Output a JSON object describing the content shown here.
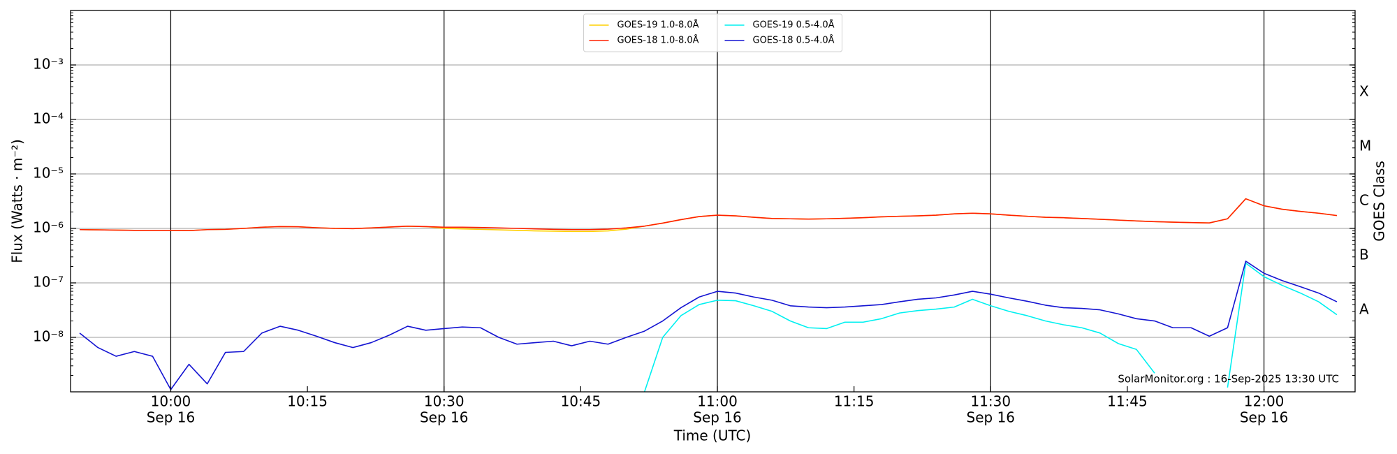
{
  "chart_data": {
    "type": "line",
    "xlabel": "Time (UTC)",
    "ylabel": "Flux (Watts · m⁻²)",
    "y2label": "GOES Class",
    "annotation": "SolarMonitor.org : 16-Sep-2025 13:30 UTC",
    "log_y": true,
    "grid": true,
    "legend": "upper center",
    "xlim": [
      "09:49",
      "12:10"
    ],
    "xticks": [
      "10:00",
      "10:15",
      "10:30",
      "10:45",
      "11:00",
      "11:15",
      "11:30",
      "11:45",
      "12:00"
    ],
    "xtick_sublabels": [
      "Sep 16",
      null,
      "Sep 16",
      null,
      "Sep 16",
      null,
      "Sep 16",
      null,
      "Sep 16"
    ],
    "ylim": [
      1e-09,
      0.01
    ],
    "yticks": [
      {
        "value": 1e-08,
        "label": "10⁻⁸"
      },
      {
        "value": 1e-07,
        "label": "10⁻⁷"
      },
      {
        "value": 1e-06,
        "label": "10⁻⁶"
      },
      {
        "value": 1e-05,
        "label": "10⁻⁵"
      },
      {
        "value": 0.0001,
        "label": "10⁻⁴"
      },
      {
        "value": 0.001,
        "label": "10⁻³"
      }
    ],
    "y2lim": [
      1e-09,
      0.01
    ],
    "y2ticks": [
      {
        "value": 3.16e-08,
        "label": "A"
      },
      {
        "value": 3.16e-07,
        "label": "B"
      },
      {
        "value": 3.16e-06,
        "label": "C"
      },
      {
        "value": 3.16e-05,
        "label": "M"
      },
      {
        "value": 0.000316,
        "label": "X"
      }
    ],
    "x": [
      "09:50",
      "09:52",
      "09:54",
      "09:56",
      "09:58",
      "10:00",
      "10:02",
      "10:04",
      "10:06",
      "10:08",
      "10:10",
      "10:12",
      "10:14",
      "10:16",
      "10:18",
      "10:20",
      "10:22",
      "10:24",
      "10:26",
      "10:28",
      "10:30",
      "10:32",
      "10:34",
      "10:36",
      "10:38",
      "10:40",
      "10:42",
      "10:44",
      "10:46",
      "10:48",
      "10:50",
      "10:52",
      "10:54",
      "10:56",
      "10:58",
      "11:00",
      "11:02",
      "11:04",
      "11:06",
      "11:08",
      "11:10",
      "11:12",
      "11:14",
      "11:16",
      "11:18",
      "11:20",
      "11:22",
      "11:24",
      "11:26",
      "11:28",
      "11:30",
      "11:32",
      "11:34",
      "11:36",
      "11:38",
      "11:40",
      "11:42",
      "11:44",
      "11:46",
      "11:48",
      "11:50",
      "11:52",
      "11:54",
      "11:56",
      "11:58",
      "12:00",
      "12:02",
      "12:04",
      "12:06",
      "12:08"
    ],
    "series": [
      {
        "name": "GOES-19 1.0-8.0Å",
        "color": "#ffd000",
        "values": [
          9.5e-07,
          9.4e-07,
          9.3e-07,
          9.2e-07,
          9.2e-07,
          9.2e-07,
          9.1e-07,
          9.5e-07,
          9.6e-07,
          1e-06,
          1.05e-06,
          1.08e-06,
          1.07e-06,
          1.03e-06,
          1e-06,
          9.9e-07,
          1.02e-06,
          1.06e-06,
          1.1e-06,
          1.08e-06,
          1e-06,
          9.8e-07,
          9.6e-07,
          9.4e-07,
          9.2e-07,
          9e-07,
          8.9e-07,
          8.8e-07,
          8.8e-07,
          9e-07,
          9.7e-07,
          1.1e-06,
          1.25e-06,
          1.45e-06,
          1.65e-06,
          1.75e-06,
          1.7e-06,
          1.6e-06,
          1.52e-06,
          1.5e-06,
          1.48e-06,
          1.5e-06,
          1.53e-06,
          1.57e-06,
          1.63e-06,
          1.67e-06,
          1.7e-06,
          1.75e-06,
          1.85e-06,
          1.9e-06,
          1.85e-06,
          1.75e-06,
          1.67e-06,
          1.6e-06,
          1.57e-06,
          1.52e-06,
          1.47e-06,
          1.42e-06,
          1.37e-06,
          1.33e-06,
          1.3e-06,
          1.28e-06,
          1.26e-06,
          1.5e-06,
          3.5e-06,
          2.6e-06,
          2.25e-06,
          2.05e-06,
          1.9e-06,
          1.72e-06
        ]
      },
      {
        "name": "GOES-18 1.0-8.0Å",
        "color": "#ff2000",
        "values": [
          9.5e-07,
          9.4e-07,
          9.3e-07,
          9.2e-07,
          9.2e-07,
          9.2e-07,
          9.1e-07,
          9.5e-07,
          9.6e-07,
          1e-06,
          1.05e-06,
          1.08e-06,
          1.07e-06,
          1.03e-06,
          1e-06,
          9.9e-07,
          1.02e-06,
          1.06e-06,
          1.1e-06,
          1.08e-06,
          1.05e-06,
          1.05e-06,
          1.04e-06,
          1.02e-06,
          1e-06,
          9.8e-07,
          9.6e-07,
          9.5e-07,
          9.5e-07,
          9.7e-07,
          1.02e-06,
          1.1e-06,
          1.25e-06,
          1.45e-06,
          1.65e-06,
          1.75e-06,
          1.7e-06,
          1.6e-06,
          1.52e-06,
          1.5e-06,
          1.48e-06,
          1.5e-06,
          1.53e-06,
          1.57e-06,
          1.63e-06,
          1.67e-06,
          1.7e-06,
          1.75e-06,
          1.85e-06,
          1.9e-06,
          1.85e-06,
          1.75e-06,
          1.67e-06,
          1.6e-06,
          1.57e-06,
          1.52e-06,
          1.47e-06,
          1.42e-06,
          1.37e-06,
          1.33e-06,
          1.3e-06,
          1.28e-06,
          1.26e-06,
          1.5e-06,
          3.5e-06,
          2.6e-06,
          2.25e-06,
          2.05e-06,
          1.9e-06,
          1.72e-06
        ]
      },
      {
        "name": "GOES-19 0.5-4.0Å",
        "color": "#00f0f0",
        "values": [
          null,
          null,
          null,
          null,
          null,
          null,
          null,
          null,
          null,
          null,
          null,
          null,
          null,
          null,
          null,
          null,
          null,
          null,
          null,
          null,
          null,
          null,
          null,
          null,
          null,
          null,
          null,
          null,
          null,
          null,
          null,
          1e-09,
          1e-08,
          2.5e-08,
          4e-08,
          4.8e-08,
          4.7e-08,
          3.8e-08,
          3e-08,
          2e-08,
          1.5e-08,
          1.45e-08,
          1.9e-08,
          1.9e-08,
          2.2e-08,
          2.8e-08,
          3.1e-08,
          3.3e-08,
          3.6e-08,
          5e-08,
          3.8e-08,
          3e-08,
          2.5e-08,
          2e-08,
          1.7e-08,
          1.5e-08,
          1.2e-08,
          7.7e-09,
          6e-09,
          2.2e-09,
          null,
          null,
          null,
          1.2e-09,
          2.3e-07,
          1.3e-07,
          9e-08,
          6.5e-08,
          4.5e-08,
          2.6e-08
        ]
      },
      {
        "name": "GOES-18 0.5-4.0Å",
        "color": "#1414d2",
        "values": [
          1.2e-08,
          6.5e-09,
          4.5e-09,
          5.5e-09,
          4.5e-09,
          1.1e-09,
          3.2e-09,
          1.4e-09,
          5.3e-09,
          5.5e-09,
          1.2e-08,
          1.6e-08,
          1.35e-08,
          1.05e-08,
          8e-09,
          6.5e-09,
          8e-09,
          1.1e-08,
          1.6e-08,
          1.35e-08,
          1.45e-08,
          1.55e-08,
          1.5e-08,
          1e-08,
          7.5e-09,
          8e-09,
          8.5e-09,
          7e-09,
          8.5e-09,
          7.5e-09,
          1e-08,
          1.3e-08,
          2e-08,
          3.5e-08,
          5.5e-08,
          7e-08,
          6.5e-08,
          5.5e-08,
          4.8e-08,
          3.8e-08,
          3.6e-08,
          3.5e-08,
          3.6e-08,
          3.8e-08,
          4e-08,
          4.5e-08,
          5e-08,
          5.3e-08,
          6e-08,
          7e-08,
          6.2e-08,
          5.3e-08,
          4.6e-08,
          3.9e-08,
          3.5e-08,
          3.4e-08,
          3.2e-08,
          2.7e-08,
          2.2e-08,
          2e-08,
          1.5e-08,
          1.5e-08,
          1.05e-08,
          1.5e-08,
          2.5e-07,
          1.5e-07,
          1.1e-07,
          8.5e-08,
          6.5e-08,
          4.5e-08
        ]
      }
    ]
  }
}
